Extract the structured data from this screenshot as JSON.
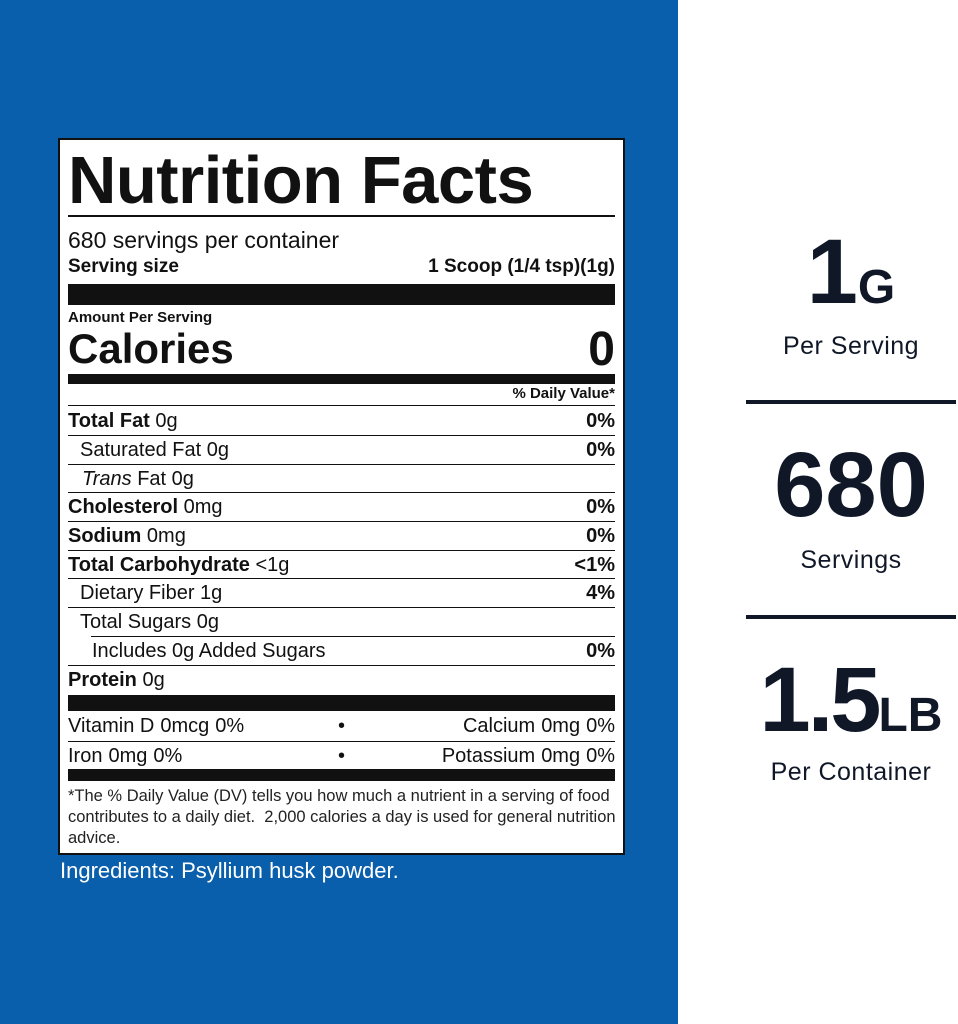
{
  "label": {
    "title": "Nutrition Facts",
    "servings_per_container": "680 servings per container",
    "serving_size": {
      "label": "Serving size",
      "value": "1 Scoop (1/4 tsp)(1g)"
    },
    "amount_per_serving": "Amount Per Serving",
    "calories": {
      "label": "Calories",
      "value": "0"
    },
    "dv_header": "% Daily Value*",
    "nutrients": [
      {
        "name": "Total Fat",
        "amount": "0g",
        "dv": "0%"
      },
      {
        "name": "Saturated Fat",
        "amount": "0g",
        "dv": "0%"
      },
      {
        "name_italic": "Trans",
        "name": "Fat",
        "amount": "0g"
      },
      {
        "name": "Cholesterol",
        "amount": "0mg",
        "dv": "0%"
      },
      {
        "name": "Sodium",
        "amount": "0mg",
        "dv": "0%"
      },
      {
        "name": "Total Carbohydrate",
        "amount": "<1g",
        "dv": "<1%"
      },
      {
        "name": "Dietary Fiber",
        "amount": "1g",
        "dv": "4%"
      },
      {
        "name": "Total Sugars",
        "amount": "0g"
      },
      {
        "name": "Includes 0g Added Sugars",
        "dv": "0%"
      },
      {
        "name": "Protein",
        "amount": "0g"
      }
    ],
    "vitamins": [
      [
        {
          "name": "Vitamin D",
          "amount": "0mcg",
          "dv": "0%"
        },
        {
          "name": "Calcium",
          "amount": "0mg",
          "dv": "0%"
        }
      ],
      [
        {
          "name": "Iron",
          "amount": "0mg",
          "dv": "0%"
        },
        {
          "name": "Potassium",
          "amount": "0mg",
          "dv": "0%"
        }
      ]
    ],
    "footnote": "*The % Daily Value (DV) tells you how much a nutrient in a serving of food contributes to a daily diet.  2,000 calories a day is used for general nutrition advice."
  },
  "ingredients": "Ingredients: Psyllium husk powder.",
  "stats": [
    {
      "number": "1",
      "unit": "G",
      "caption": "Per Serving"
    },
    {
      "number": "680",
      "caption": "Servings"
    },
    {
      "number": "1.5",
      "unit": "LB",
      "caption": "Per Container"
    }
  ]
}
